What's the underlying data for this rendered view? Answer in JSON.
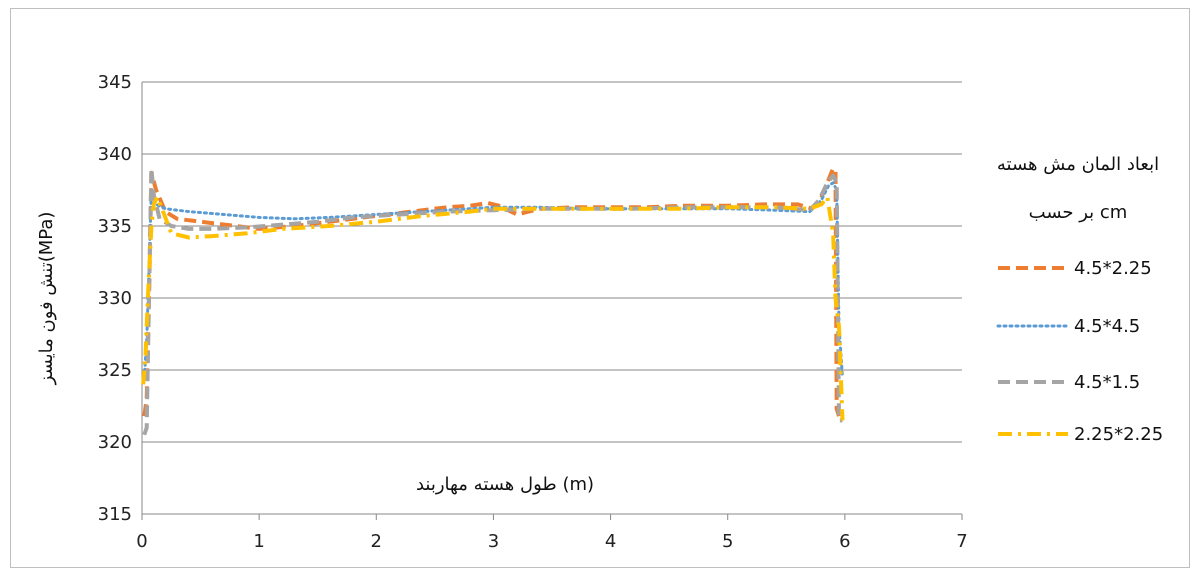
{
  "chart_data": {
    "type": "line",
    "title": "",
    "xlabel": "طول هسته مهاربند (m)",
    "ylabel": "تنش فون مایسز(MPa)",
    "xlim": [
      0,
      7
    ],
    "ylim": [
      315,
      345
    ],
    "x_ticks": [
      "0",
      "1",
      "2",
      "3",
      "4",
      "5",
      "6",
      "7"
    ],
    "y_ticks": [
      "315",
      "320",
      "325",
      "330",
      "335",
      "340",
      "345"
    ],
    "grid": "horizontal",
    "legend_position": "right",
    "legend_title_line1": "ابعاد المان مش هسته",
    "legend_title_line2": "بر حسب  cm",
    "series": [
      {
        "name": "4.5*2.25",
        "color": "#ED7D31",
        "dash": "dash",
        "x": [
          0.02,
          0.04,
          0.06,
          0.08,
          0.12,
          0.2,
          0.3,
          0.5,
          0.8,
          1.0,
          1.3,
          1.6,
          2.0,
          2.3,
          2.6,
          2.8,
          2.95,
          3.05,
          3.2,
          3.4,
          3.7,
          4.0,
          4.3,
          4.6,
          5.0,
          5.3,
          5.6,
          5.72,
          5.8,
          5.86,
          5.9,
          5.92,
          5.93,
          5.95
        ],
        "y": [
          321.8,
          323,
          330,
          338.7,
          337.5,
          336,
          335.5,
          335.3,
          335,
          334.8,
          335,
          335.3,
          335.7,
          336,
          336.3,
          336.4,
          336.6,
          336.4,
          335.8,
          336.2,
          336.3,
          336.3,
          336.3,
          336.4,
          336.4,
          336.5,
          336.5,
          336.2,
          337,
          338.2,
          339,
          338.8,
          322.3,
          321.8
        ]
      },
      {
        "name": "4.5*4.5",
        "color": "#5B9BD5",
        "dash": "dot",
        "x": [
          0.02,
          0.04,
          0.06,
          0.08,
          0.12,
          0.2,
          0.4,
          0.7,
          1.0,
          1.3,
          1.6,
          2.0,
          2.4,
          2.8,
          3.0,
          3.4,
          3.8,
          4.2,
          4.6,
          5.0,
          5.4,
          5.7,
          5.8,
          5.86,
          5.9,
          5.93,
          5.95,
          5.98
        ],
        "y": [
          324.5,
          327,
          332,
          337.5,
          336.5,
          336.2,
          336,
          335.8,
          335.6,
          335.5,
          335.6,
          335.8,
          336,
          336.2,
          336.3,
          336.3,
          336.2,
          336.2,
          336.2,
          336.2,
          336.1,
          336,
          336.8,
          337.8,
          338,
          337.5,
          328,
          324.5
        ]
      },
      {
        "name": "4.5*1.5",
        "color": "#A5A5A5",
        "dash": "dash",
        "x": [
          0.02,
          0.04,
          0.06,
          0.08,
          0.1,
          0.15,
          0.25,
          0.4,
          0.6,
          0.9,
          1.2,
          1.5,
          1.8,
          2.2,
          2.6,
          3.0,
          3.4,
          3.8,
          4.2,
          4.6,
          5.0,
          5.4,
          5.7,
          5.78,
          5.85,
          5.9,
          5.93,
          5.95,
          5.98
        ],
        "y": [
          320.5,
          321,
          330,
          339,
          337.2,
          335.5,
          335,
          334.8,
          334.8,
          334.9,
          335.1,
          335.3,
          335.6,
          335.8,
          336,
          336.1,
          336.2,
          336.2,
          336.2,
          336.3,
          336.3,
          336.3,
          336.1,
          336.8,
          338,
          338.5,
          338,
          321.5,
          321.5
        ]
      },
      {
        "name": "2.25*2.25",
        "color": "#FFC000",
        "dash": "dashdot",
        "x": [
          0.01,
          0.03,
          0.05,
          0.08,
          0.1,
          0.13,
          0.18,
          0.25,
          0.4,
          0.6,
          0.9,
          1.2,
          1.6,
          2.0,
          2.4,
          2.8,
          3.0,
          3.4,
          3.8,
          4.2,
          4.6,
          5.0,
          5.4,
          5.7,
          5.8,
          5.85,
          5.9,
          5.92,
          5.95,
          5.98
        ],
        "y": [
          324,
          326,
          330,
          335,
          336.5,
          337,
          336,
          334.5,
          334.2,
          334.3,
          334.5,
          334.8,
          335,
          335.3,
          335.7,
          336,
          336.2,
          336.2,
          336.2,
          336.2,
          336.2,
          336.3,
          336.3,
          336.2,
          336.5,
          337,
          334.5,
          330,
          328,
          321.5
        ]
      }
    ]
  }
}
